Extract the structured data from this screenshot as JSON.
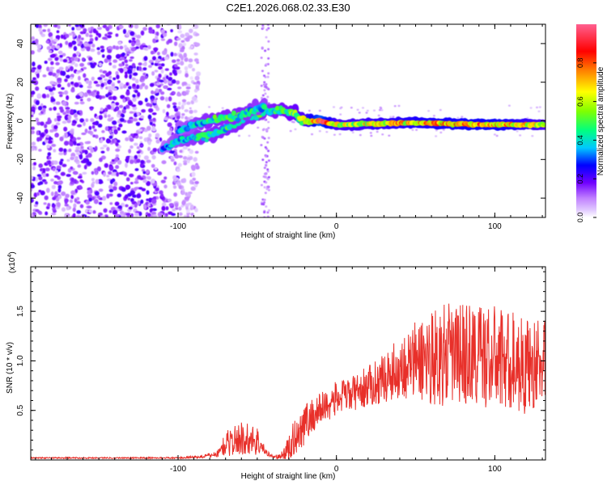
{
  "title": "C2E1.2026.068.02.33.E30",
  "chart_data": [
    {
      "type": "heatmap",
      "title": "C2E1.2026.068.02.33.E30",
      "xlabel": "Height of straight line (km)",
      "ylabel": "Frequency (Hz)",
      "xlim": [
        -193,
        132
      ],
      "ylim": [
        -50,
        50
      ],
      "xticks": [
        -100,
        0,
        100
      ],
      "xtick_labels": [
        "-100",
        "0",
        "100"
      ],
      "yticks": [
        -40,
        -20,
        0,
        20,
        40
      ],
      "ytick_labels": [
        "-40",
        "-20",
        "0",
        "20",
        "40"
      ],
      "colorbar": {
        "label": "Normalized spectral amplitude",
        "range": [
          0,
          1
        ],
        "ticks": [
          0.0,
          0.2,
          0.4,
          0.6,
          0.8
        ],
        "tick_labels": [
          "0.0",
          "0.2",
          "0.4",
          "0.6",
          "0.8"
        ],
        "colors": [
          "#ffffff",
          "#c080ff",
          "#7000ff",
          "#0000ff",
          "#00c8ff",
          "#00ff80",
          "#80ff00",
          "#ffff00",
          "#ff8000",
          "#ff0000",
          "#ff6090"
        ]
      },
      "features": {
        "noise_region_x": [
          -193,
          -95
        ],
        "noise_amplitude": 0.2,
        "vertical_stripe_x": -45,
        "track": [
          {
            "x": -110,
            "f": -15,
            "amp": 0.3
          },
          {
            "x": -100,
            "f": -10,
            "amp": 0.4
          },
          {
            "x": -80,
            "f": -8,
            "amp": 0.45
          },
          {
            "x": -60,
            "f": 0,
            "amp": 0.45
          },
          {
            "x": -45,
            "f": 5,
            "amp": 0.45
          },
          {
            "x": -30,
            "f": 5,
            "amp": 0.5
          },
          {
            "x": -20,
            "f": 0,
            "amp": 0.6
          },
          {
            "x": -10,
            "f": 0,
            "amp": 0.9
          },
          {
            "x": 0,
            "f": -2,
            "amp": 0.6
          },
          {
            "x": 50,
            "f": -1,
            "amp": 0.7
          },
          {
            "x": 100,
            "f": -2,
            "amp": 0.75
          },
          {
            "x": 132,
            "f": -2,
            "amp": 0.6
          }
        ],
        "upper_branch": [
          {
            "x": -100,
            "f": -5,
            "amp": 0.35
          },
          {
            "x": -80,
            "f": 0,
            "amp": 0.45
          },
          {
            "x": -60,
            "f": 3,
            "amp": 0.45
          },
          {
            "x": -45,
            "f": 8,
            "amp": 0.4
          }
        ]
      }
    },
    {
      "type": "line",
      "xlabel": "Height of straight line (km)",
      "ylabel": "SNR (10 * v/v)",
      "y_multiplier": "(x10^4)",
      "xlim": [
        -193,
        132
      ],
      "ylim": [
        0,
        1.95
      ],
      "xticks": [
        -100,
        0,
        100
      ],
      "xtick_labels": [
        "-100",
        "0",
        "100"
      ],
      "yticks": [
        0.5,
        1.0,
        1.5
      ],
      "ytick_labels": [
        "0.5",
        "1.0",
        "1.5"
      ],
      "color": "#e8302a",
      "envelope": {
        "x": [
          -193,
          -100,
          -85,
          -75,
          -70,
          -60,
          -50,
          -45,
          -40,
          -35,
          -30,
          -25,
          -20,
          -10,
          0,
          10,
          20,
          30,
          40,
          50,
          60,
          70,
          80,
          90,
          100,
          110,
          120,
          132
        ],
        "base": [
          0.02,
          0.02,
          0.03,
          0.06,
          0.15,
          0.2,
          0.18,
          0.08,
          0.03,
          0.03,
          0.1,
          0.25,
          0.35,
          0.5,
          0.6,
          0.65,
          0.72,
          0.8,
          0.9,
          0.95,
          1.0,
          1.0,
          1.02,
          1.0,
          0.98,
          0.95,
          0.9,
          0.95
        ],
        "spread": [
          0.01,
          0.01,
          0.02,
          0.05,
          0.18,
          0.25,
          0.22,
          0.05,
          0.02,
          0.05,
          0.2,
          0.3,
          0.3,
          0.25,
          0.25,
          0.25,
          0.3,
          0.35,
          0.45,
          0.6,
          0.7,
          0.75,
          0.75,
          0.8,
          0.75,
          0.75,
          0.7,
          0.6
        ]
      }
    }
  ]
}
